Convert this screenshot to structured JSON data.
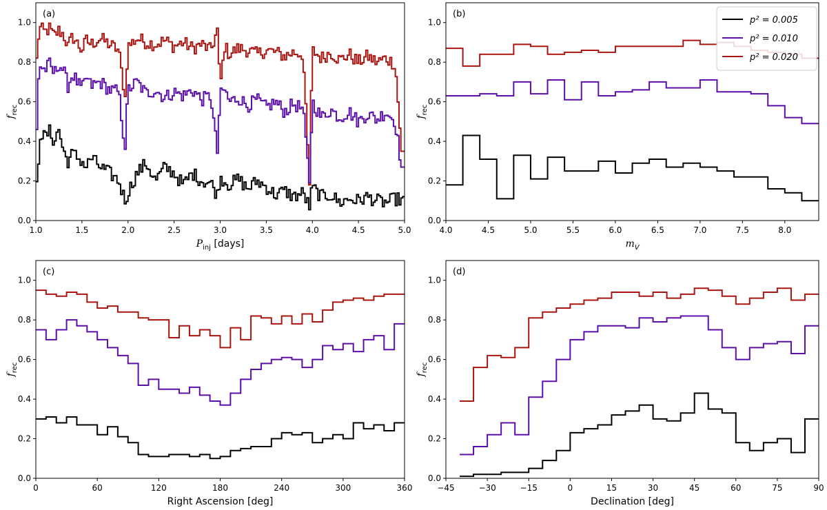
{
  "legend": {
    "entries": [
      {
        "label": "p² = 0.005",
        "color": "#000000"
      },
      {
        "label": "p² = 0.010",
        "color": "#5b0fa8"
      },
      {
        "label": "p² = 0.020",
        "color": "#a8140f"
      }
    ]
  },
  "chart_data": [
    {
      "panel": "(a)",
      "type": "line",
      "step": true,
      "xlabel": "P_inj [days]",
      "ylabel": "f_rec",
      "xlim": [
        1.0,
        5.0
      ],
      "ylim": [
        0.0,
        1.1
      ],
      "xticks": [
        "1.0",
        "1.5",
        "2.0",
        "2.5",
        "3.0",
        "3.5",
        "4.0",
        "4.5",
        "5.0"
      ],
      "yticks": [
        "0.0",
        "0.2",
        "0.4",
        "0.6",
        "0.8",
        "1.0"
      ],
      "grid": false,
      "dense": true,
      "anchors": {
        "0.020": [
          [
            1.0,
            0.71
          ],
          [
            1.02,
            0.91
          ],
          [
            1.05,
            0.97
          ],
          [
            1.1,
            0.95
          ],
          [
            1.15,
            0.97
          ],
          [
            1.2,
            0.93
          ],
          [
            1.25,
            0.96
          ],
          [
            1.3,
            0.94
          ],
          [
            1.35,
            0.88
          ],
          [
            1.4,
            0.93
          ],
          [
            1.5,
            0.86
          ],
          [
            1.55,
            0.91
          ],
          [
            1.6,
            0.89
          ],
          [
            1.7,
            0.92
          ],
          [
            1.8,
            0.89
          ],
          [
            1.9,
            0.86
          ],
          [
            1.97,
            0.62
          ],
          [
            2.0,
            0.88
          ],
          [
            2.1,
            0.92
          ],
          [
            2.2,
            0.9
          ],
          [
            2.3,
            0.89
          ],
          [
            2.4,
            0.91
          ],
          [
            2.5,
            0.88
          ],
          [
            2.6,
            0.9
          ],
          [
            2.7,
            0.87
          ],
          [
            2.8,
            0.89
          ],
          [
            2.9,
            0.86
          ],
          [
            2.97,
            0.96
          ],
          [
            3.0,
            0.67
          ],
          [
            3.05,
            0.88
          ],
          [
            3.1,
            0.84
          ],
          [
            3.2,
            0.87
          ],
          [
            3.3,
            0.86
          ],
          [
            3.4,
            0.84
          ],
          [
            3.5,
            0.86
          ],
          [
            3.6,
            0.85
          ],
          [
            3.7,
            0.83
          ],
          [
            3.8,
            0.85
          ],
          [
            3.9,
            0.84
          ],
          [
            3.97,
            0.18
          ],
          [
            4.0,
            0.86
          ],
          [
            4.1,
            0.82
          ],
          [
            4.2,
            0.85
          ],
          [
            4.3,
            0.81
          ],
          [
            4.4,
            0.84
          ],
          [
            4.5,
            0.8
          ],
          [
            4.6,
            0.83
          ],
          [
            4.7,
            0.8
          ],
          [
            4.8,
            0.82
          ],
          [
            4.9,
            0.79
          ],
          [
            4.97,
            0.35
          ],
          [
            5.0,
            0.35
          ]
        ],
        "0.010": [
          [
            1.0,
            0.46
          ],
          [
            1.02,
            0.7
          ],
          [
            1.05,
            0.78
          ],
          [
            1.1,
            0.76
          ],
          [
            1.15,
            0.79
          ],
          [
            1.2,
            0.74
          ],
          [
            1.25,
            0.79
          ],
          [
            1.3,
            0.76
          ],
          [
            1.35,
            0.68
          ],
          [
            1.4,
            0.74
          ],
          [
            1.5,
            0.66
          ],
          [
            1.55,
            0.72
          ],
          [
            1.6,
            0.68
          ],
          [
            1.7,
            0.7
          ],
          [
            1.8,
            0.66
          ],
          [
            1.9,
            0.65
          ],
          [
            1.97,
            0.36
          ],
          [
            2.0,
            0.66
          ],
          [
            2.1,
            0.7
          ],
          [
            2.2,
            0.64
          ],
          [
            2.3,
            0.66
          ],
          [
            2.4,
            0.62
          ],
          [
            2.5,
            0.65
          ],
          [
            2.6,
            0.63
          ],
          [
            2.7,
            0.66
          ],
          [
            2.8,
            0.61
          ],
          [
            2.9,
            0.63
          ],
          [
            2.97,
            0.34
          ],
          [
            3.0,
            0.63
          ],
          [
            3.05,
            0.66
          ],
          [
            3.1,
            0.6
          ],
          [
            3.2,
            0.62
          ],
          [
            3.3,
            0.58
          ],
          [
            3.4,
            0.61
          ],
          [
            3.5,
            0.57
          ],
          [
            3.6,
            0.6
          ],
          [
            3.7,
            0.55
          ],
          [
            3.8,
            0.59
          ],
          [
            3.9,
            0.56
          ],
          [
            3.97,
            0.19
          ],
          [
            4.0,
            0.6
          ],
          [
            4.1,
            0.52
          ],
          [
            4.2,
            0.56
          ],
          [
            4.3,
            0.52
          ],
          [
            4.4,
            0.55
          ],
          [
            4.5,
            0.5
          ],
          [
            4.6,
            0.54
          ],
          [
            4.7,
            0.51
          ],
          [
            4.8,
            0.55
          ],
          [
            4.9,
            0.5
          ],
          [
            4.97,
            0.27
          ],
          [
            5.0,
            0.27
          ]
        ],
        "0.005": [
          [
            1.0,
            0.11
          ],
          [
            1.02,
            0.24
          ],
          [
            1.05,
            0.44
          ],
          [
            1.1,
            0.42
          ],
          [
            1.15,
            0.45
          ],
          [
            1.2,
            0.4
          ],
          [
            1.25,
            0.46
          ],
          [
            1.3,
            0.35
          ],
          [
            1.35,
            0.3
          ],
          [
            1.4,
            0.34
          ],
          [
            1.5,
            0.3
          ],
          [
            1.55,
            0.27
          ],
          [
            1.6,
            0.32
          ],
          [
            1.7,
            0.27
          ],
          [
            1.8,
            0.24
          ],
          [
            1.9,
            0.2
          ],
          [
            1.97,
            0.1
          ],
          [
            2.0,
            0.14
          ],
          [
            2.1,
            0.24
          ],
          [
            2.2,
            0.29
          ],
          [
            2.3,
            0.2
          ],
          [
            2.4,
            0.27
          ],
          [
            2.5,
            0.24
          ],
          [
            2.6,
            0.18
          ],
          [
            2.7,
            0.24
          ],
          [
            2.8,
            0.2
          ],
          [
            2.9,
            0.19
          ],
          [
            2.97,
            0.13
          ],
          [
            3.0,
            0.22
          ],
          [
            3.1,
            0.18
          ],
          [
            3.2,
            0.21
          ],
          [
            3.3,
            0.16
          ],
          [
            3.4,
            0.2
          ],
          [
            3.5,
            0.17
          ],
          [
            3.6,
            0.13
          ],
          [
            3.7,
            0.15
          ],
          [
            3.8,
            0.12
          ],
          [
            3.9,
            0.14
          ],
          [
            3.97,
            0.07
          ],
          [
            4.0,
            0.17
          ],
          [
            4.1,
            0.12
          ],
          [
            4.2,
            0.13
          ],
          [
            4.3,
            0.09
          ],
          [
            4.4,
            0.11
          ],
          [
            4.5,
            0.1
          ],
          [
            4.6,
            0.12
          ],
          [
            4.7,
            0.1
          ],
          [
            4.8,
            0.09
          ],
          [
            4.9,
            0.11
          ],
          [
            5.0,
            0.1
          ]
        ]
      }
    },
    {
      "panel": "(b)",
      "type": "line",
      "step": true,
      "xlabel": "m_V",
      "ylabel": "f_rec",
      "xlim": [
        4.0,
        8.4
      ],
      "ylim": [
        0.0,
        1.1
      ],
      "xticks": [
        "4.0",
        "4.5",
        "5.0",
        "5.5",
        "6.0",
        "6.5",
        "7.0",
        "7.5",
        "8.0"
      ],
      "yticks": [
        "0.0",
        "0.2",
        "0.4",
        "0.6",
        "0.8",
        "1.0"
      ],
      "grid": false,
      "legend": "top-right",
      "edges": [
        4.0,
        4.2,
        4.4,
        4.6,
        4.8,
        5.0,
        5.2,
        5.4,
        5.6,
        5.8,
        6.0,
        6.2,
        6.4,
        6.6,
        6.8,
        7.0,
        7.2,
        7.4,
        7.6,
        7.8,
        8.0,
        8.2,
        8.4
      ],
      "series": [
        {
          "name": "p² = 0.020",
          "color": "#a8140f",
          "values": [
            0.87,
            0.78,
            0.84,
            0.84,
            0.89,
            0.88,
            0.84,
            0.85,
            0.86,
            0.85,
            0.88,
            0.88,
            0.88,
            0.88,
            0.91,
            0.89,
            0.9,
            0.88,
            0.86,
            0.85,
            0.84,
            0.82
          ]
        },
        {
          "name": "p² = 0.010",
          "color": "#5b0fa8",
          "values": [
            0.63,
            0.63,
            0.64,
            0.63,
            0.7,
            0.64,
            0.71,
            0.61,
            0.7,
            0.63,
            0.65,
            0.66,
            0.7,
            0.67,
            0.67,
            0.71,
            0.65,
            0.65,
            0.64,
            0.58,
            0.52,
            0.49
          ]
        },
        {
          "name": "p² = 0.005",
          "color": "#000000",
          "values": [
            0.18,
            0.43,
            0.31,
            0.11,
            0.33,
            0.21,
            0.32,
            0.25,
            0.25,
            0.3,
            0.24,
            0.29,
            0.31,
            0.27,
            0.29,
            0.27,
            0.25,
            0.22,
            0.22,
            0.16,
            0.14,
            0.1
          ]
        }
      ]
    },
    {
      "panel": "(c)",
      "type": "line",
      "step": true,
      "xlabel": "Right Ascension [deg]",
      "ylabel": "f_rec",
      "xlim": [
        0,
        360
      ],
      "ylim": [
        0.0,
        1.1
      ],
      "xticks": [
        "0",
        "60",
        "120",
        "180",
        "240",
        "300",
        "360"
      ],
      "yticks": [
        "0.0",
        "0.2",
        "0.4",
        "0.6",
        "0.8",
        "1.0"
      ],
      "grid": false,
      "edges": [
        0,
        10,
        20,
        30,
        40,
        50,
        60,
        70,
        80,
        90,
        100,
        110,
        120,
        130,
        140,
        150,
        160,
        170,
        180,
        190,
        200,
        210,
        220,
        230,
        240,
        250,
        260,
        270,
        280,
        290,
        300,
        310,
        320,
        330,
        340,
        350,
        360
      ],
      "series": [
        {
          "name": "p² = 0.020",
          "color": "#a8140f",
          "values": [
            0.95,
            0.93,
            0.92,
            0.94,
            0.93,
            0.89,
            0.86,
            0.87,
            0.84,
            0.84,
            0.81,
            0.8,
            0.8,
            0.71,
            0.77,
            0.72,
            0.75,
            0.72,
            0.66,
            0.76,
            0.7,
            0.82,
            0.81,
            0.78,
            0.82,
            0.78,
            0.83,
            0.79,
            0.85,
            0.89,
            0.9,
            0.91,
            0.9,
            0.92,
            0.93,
            0.93
          ]
        },
        {
          "name": "p² = 0.010",
          "color": "#5b0fa8",
          "values": [
            0.75,
            0.7,
            0.75,
            0.8,
            0.77,
            0.74,
            0.7,
            0.66,
            0.62,
            0.58,
            0.47,
            0.5,
            0.45,
            0.45,
            0.43,
            0.46,
            0.42,
            0.39,
            0.37,
            0.43,
            0.5,
            0.55,
            0.58,
            0.6,
            0.61,
            0.6,
            0.56,
            0.6,
            0.67,
            0.65,
            0.68,
            0.64,
            0.7,
            0.72,
            0.65,
            0.78
          ]
        },
        {
          "name": "p² = 0.005",
          "color": "#000000",
          "values": [
            0.3,
            0.31,
            0.28,
            0.31,
            0.27,
            0.27,
            0.22,
            0.26,
            0.21,
            0.18,
            0.12,
            0.11,
            0.11,
            0.12,
            0.12,
            0.11,
            0.12,
            0.1,
            0.11,
            0.14,
            0.15,
            0.16,
            0.16,
            0.2,
            0.23,
            0.22,
            0.23,
            0.18,
            0.2,
            0.22,
            0.2,
            0.28,
            0.25,
            0.27,
            0.24,
            0.28
          ]
        }
      ]
    },
    {
      "panel": "(d)",
      "type": "line",
      "step": true,
      "xlabel": "Declination [deg]",
      "ylabel": "f_rec",
      "xlim": [
        -45,
        90
      ],
      "ylim": [
        0.0,
        1.1
      ],
      "xticks": [
        "−45",
        "−30",
        "−15",
        "0",
        "15",
        "30",
        "45",
        "60",
        "75",
        "90"
      ],
      "xtick_values": [
        -45,
        -30,
        -15,
        0,
        15,
        30,
        45,
        60,
        75,
        90
      ],
      "yticks": [
        "0.0",
        "0.2",
        "0.4",
        "0.6",
        "0.8",
        "1.0"
      ],
      "grid": false,
      "edges": [
        -40,
        -35,
        -30,
        -25,
        -20,
        -15,
        -10,
        -5,
        0,
        5,
        10,
        15,
        20,
        25,
        30,
        35,
        40,
        45,
        50,
        55,
        60,
        65,
        70,
        75,
        80,
        85,
        90
      ],
      "series": [
        {
          "name": "p² = 0.020",
          "color": "#a8140f",
          "values": [
            0.39,
            0.56,
            0.62,
            0.61,
            0.66,
            0.81,
            0.84,
            0.86,
            0.88,
            0.9,
            0.91,
            0.94,
            0.94,
            0.92,
            0.94,
            0.91,
            0.93,
            0.96,
            0.95,
            0.92,
            0.88,
            0.91,
            0.94,
            0.96,
            0.9,
            0.93
          ]
        },
        {
          "name": "p² = 0.010",
          "color": "#5b0fa8",
          "values": [
            0.12,
            0.16,
            0.22,
            0.28,
            0.22,
            0.41,
            0.49,
            0.6,
            0.7,
            0.74,
            0.77,
            0.77,
            0.76,
            0.81,
            0.79,
            0.81,
            0.82,
            0.82,
            0.75,
            0.66,
            0.6,
            0.66,
            0.68,
            0.69,
            0.63,
            0.77
          ]
        },
        {
          "name": "p² = 0.005",
          "color": "#000000",
          "values": [
            0.01,
            0.02,
            0.02,
            0.03,
            0.03,
            0.05,
            0.09,
            0.14,
            0.23,
            0.25,
            0.27,
            0.32,
            0.34,
            0.37,
            0.3,
            0.29,
            0.33,
            0.43,
            0.35,
            0.33,
            0.18,
            0.14,
            0.18,
            0.2,
            0.13,
            0.3
          ]
        }
      ]
    }
  ]
}
